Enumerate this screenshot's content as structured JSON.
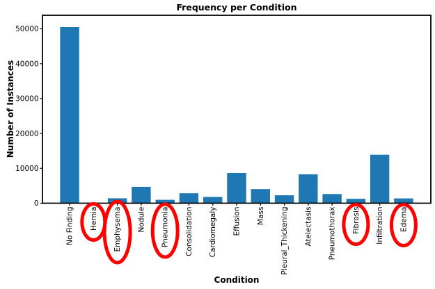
{
  "chart_data": {
    "type": "bar",
    "title": "Frequency per Condition",
    "xlabel": "Condition",
    "ylabel": "Number of Instances",
    "categories": [
      "No Finding",
      "Hernia",
      "Emphysema",
      "Nodule",
      "Pneumonia",
      "Consolidation",
      "Cardiomegaly",
      "Effusion",
      "Mass",
      "Pleural_Thickening",
      "Atelectasis",
      "Pneumothorax",
      "Fibrosis",
      "Infiltration",
      "Edema"
    ],
    "values": [
      50500,
      141,
      1423,
      4708,
      978,
      2852,
      1800,
      8659,
      4034,
      2279,
      8280,
      2637,
      1251,
      13914,
      1378
    ],
    "yticks": [
      0,
      10000,
      20000,
      30000,
      40000,
      50000
    ],
    "ylim": [
      0,
      53000
    ],
    "grid": false,
    "legend": null,
    "bar_color": "#1f77b4",
    "background": "#ffffff",
    "axis_color": "#000000",
    "xticklabel_rotation": 90,
    "annotations": {
      "circled_categories": [
        "Hernia",
        "Emphysema",
        "Pneumonia",
        "Fibrosis",
        "Edema"
      ],
      "circle_color": "#ff0000"
    }
  }
}
